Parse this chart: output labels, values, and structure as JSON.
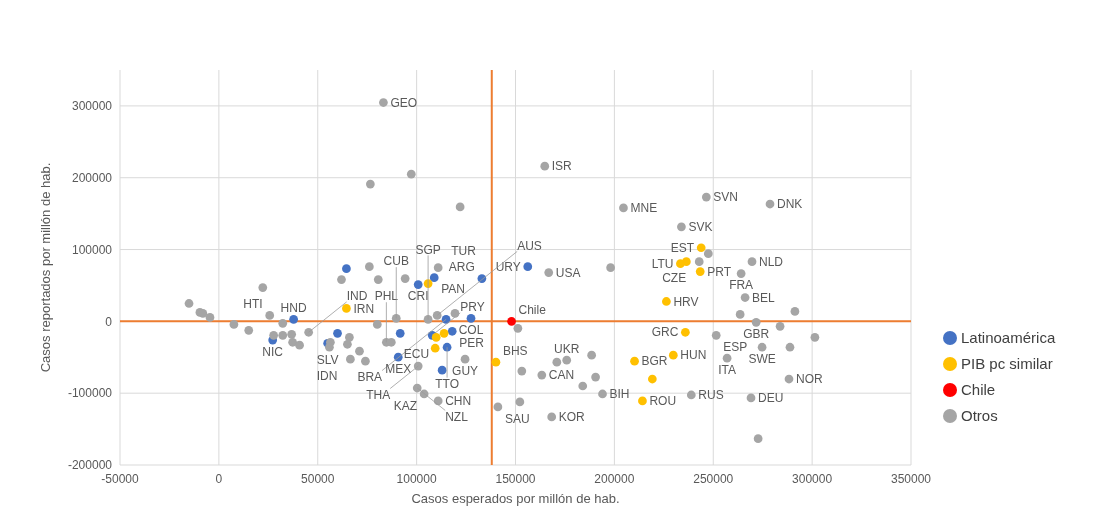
{
  "chart_data": {
    "type": "scatter",
    "xlabel": "Casos esperados por millón de hab.",
    "ylabel": "Casos reportados por millón de hab.",
    "xlim": [
      -50000,
      350000
    ],
    "xticks": [
      -50000,
      0,
      50000,
      100000,
      150000,
      200000,
      250000,
      300000,
      350000
    ],
    "ylim": [
      -200000,
      350000
    ],
    "yticks": [
      -200000,
      -100000,
      0,
      100000,
      200000,
      300000
    ],
    "grid": true,
    "legend": "right",
    "marker": "circle",
    "ref_lines": [
      {
        "axis": "x",
        "value": 138000,
        "color": "#ed7d31"
      },
      {
        "axis": "y",
        "value": 0,
        "color": "#ed7d31"
      }
    ],
    "series": [
      {
        "name": "Latinoamérica",
        "color": "#4472c4",
        "x": [
          37800,
          27200,
          55000,
          60000,
          64500,
          100800,
          108900,
          133000,
          156200,
          127500,
          114900,
          118000,
          107900,
          91700,
          90700,
          115400,
          112900
        ],
        "values": [
          2800,
          -26000,
          -30500,
          -16600,
          73400,
          51200,
          60900,
          59600,
          76200,
          4200,
          2800,
          -13800,
          -19400,
          -16600,
          -49900,
          -36000,
          -67900
        ],
        "value_labels": [
          "HND",
          "NIC",
          "SLV",
          null,
          null,
          "CRI",
          "PAN",
          "ARG",
          "URY",
          "COL",
          "BRA",
          "PER",
          "PRY",
          null,
          "MEX",
          "TTO",
          "ECU"
        ]
      },
      {
        "name": "PIB pc similar",
        "color": "#ffc000",
        "x": [
          64500,
          105800,
          109900,
          113900,
          109400,
          140100,
          210200,
          229800,
          219200,
          214200,
          235900,
          226300,
          243900,
          233400,
          236400,
          243400
        ],
        "values": [
          18000,
          52600,
          -22200,
          -16600,
          -37400,
          -56800,
          -55400,
          -47100,
          -80300,
          -110800,
          -15200,
          27700,
          102500,
          80300,
          83100,
          69300
        ],
        "value_labels": [
          "IRN",
          null,
          null,
          null,
          null,
          "BHS",
          "BGR",
          "HUN",
          null,
          "ROU",
          "GRC",
          "HRV",
          "EST",
          "LTU",
          null,
          "PRT"
        ]
      },
      {
        "name": "Chile",
        "color": "#ff0000",
        "x": [
          148000
        ],
        "values": [
          0
        ],
        "value_labels": [
          "Chile"
        ]
      },
      {
        "name": "Otros",
        "color": "#a5a5a5",
        "x": [
          83200,
          97300,
          76600,
          122000,
          164800,
          204600,
          246500,
          278700,
          233900,
          242900,
          247500,
          269600,
          264100,
          166800,
          198100,
          266100,
          291300,
          271700,
          263600,
          283800,
          301400,
          251500,
          274700,
          288800,
          257000,
          288300,
          269100,
          272700,
          238900,
          194000,
          190500,
          184000,
          175900,
          170900,
          188500,
          163300,
          153200,
          168300,
          152200,
          141100,
          151200,
          -15100,
          -9600,
          -8100,
          -4500,
          7600,
          15100,
          25700,
          32300,
          22200,
          27700,
          32300,
          36800,
          37300,
          40800,
          45400,
          56400,
          55900,
          66000,
          65000,
          66500,
          74100,
          71100,
          80100,
          84700,
          87200,
          89700,
          105800,
          110400,
          119400,
          62000,
          76100,
          80600,
          94200,
          110900,
          124500,
          100800,
          103800,
          100300,
          110900
        ],
        "values": [
          304700,
          205000,
          191100,
          159300,
          216100,
          157900,
          173100,
          163400,
          131600,
          83100,
          94200,
          83100,
          66500,
          67900,
          74800,
          33200,
          13800,
          -1400,
          9700,
          -6900,
          -22200,
          -19400,
          -36000,
          -36000,
          -51200,
          -80300,
          -106600,
          -163400,
          -102500,
          -101100,
          -77600,
          -90000,
          -54000,
          -56800,
          -47100,
          -74800,
          -69200,
          -133000,
          -112200,
          -119100,
          -9700,
          24900,
          12500,
          11100,
          5500,
          -4200,
          -12500,
          8300,
          -2800,
          47100,
          -19400,
          -19400,
          -18000,
          -29100,
          -33200,
          -15200,
          -29100,
          -36000,
          -22200,
          -31900,
          -52600,
          -55400,
          -41500,
          -4200,
          -29100,
          -29100,
          4200,
          2800,
          8300,
          11100,
          58200,
          76200,
          58200,
          59600,
          74800,
          -52600,
          -62300,
          -101100,
          -92800,
          -110800
        ],
        "value_labels": [
          "GEO",
          null,
          null,
          null,
          "ISR",
          "MNE",
          "SVN",
          "DNK",
          "SVK",
          "CZE",
          null,
          "NLD",
          "FRA",
          "USA",
          null,
          "BEL",
          null,
          "GBR",
          null,
          null,
          null,
          "ESP",
          "SWE",
          null,
          "ITA",
          "NOR",
          "DEU",
          null,
          "RUS",
          "BIH",
          null,
          null,
          "UKR",
          null,
          null,
          "CAN",
          null,
          "KOR",
          null,
          "SAU",
          null,
          null,
          null,
          null,
          null,
          null,
          null,
          "HTI",
          null,
          null,
          null,
          null,
          null,
          null,
          null,
          "IND",
          null,
          null,
          null,
          null,
          "IDN",
          null,
          null,
          null,
          "PHL",
          null,
          "CUB",
          "SGP",
          "AUS",
          null,
          null,
          null,
          null,
          null,
          "TUR",
          "GUY",
          "THA",
          "KAZ",
          "NZL",
          "CHN"
        ]
      }
    ]
  }
}
